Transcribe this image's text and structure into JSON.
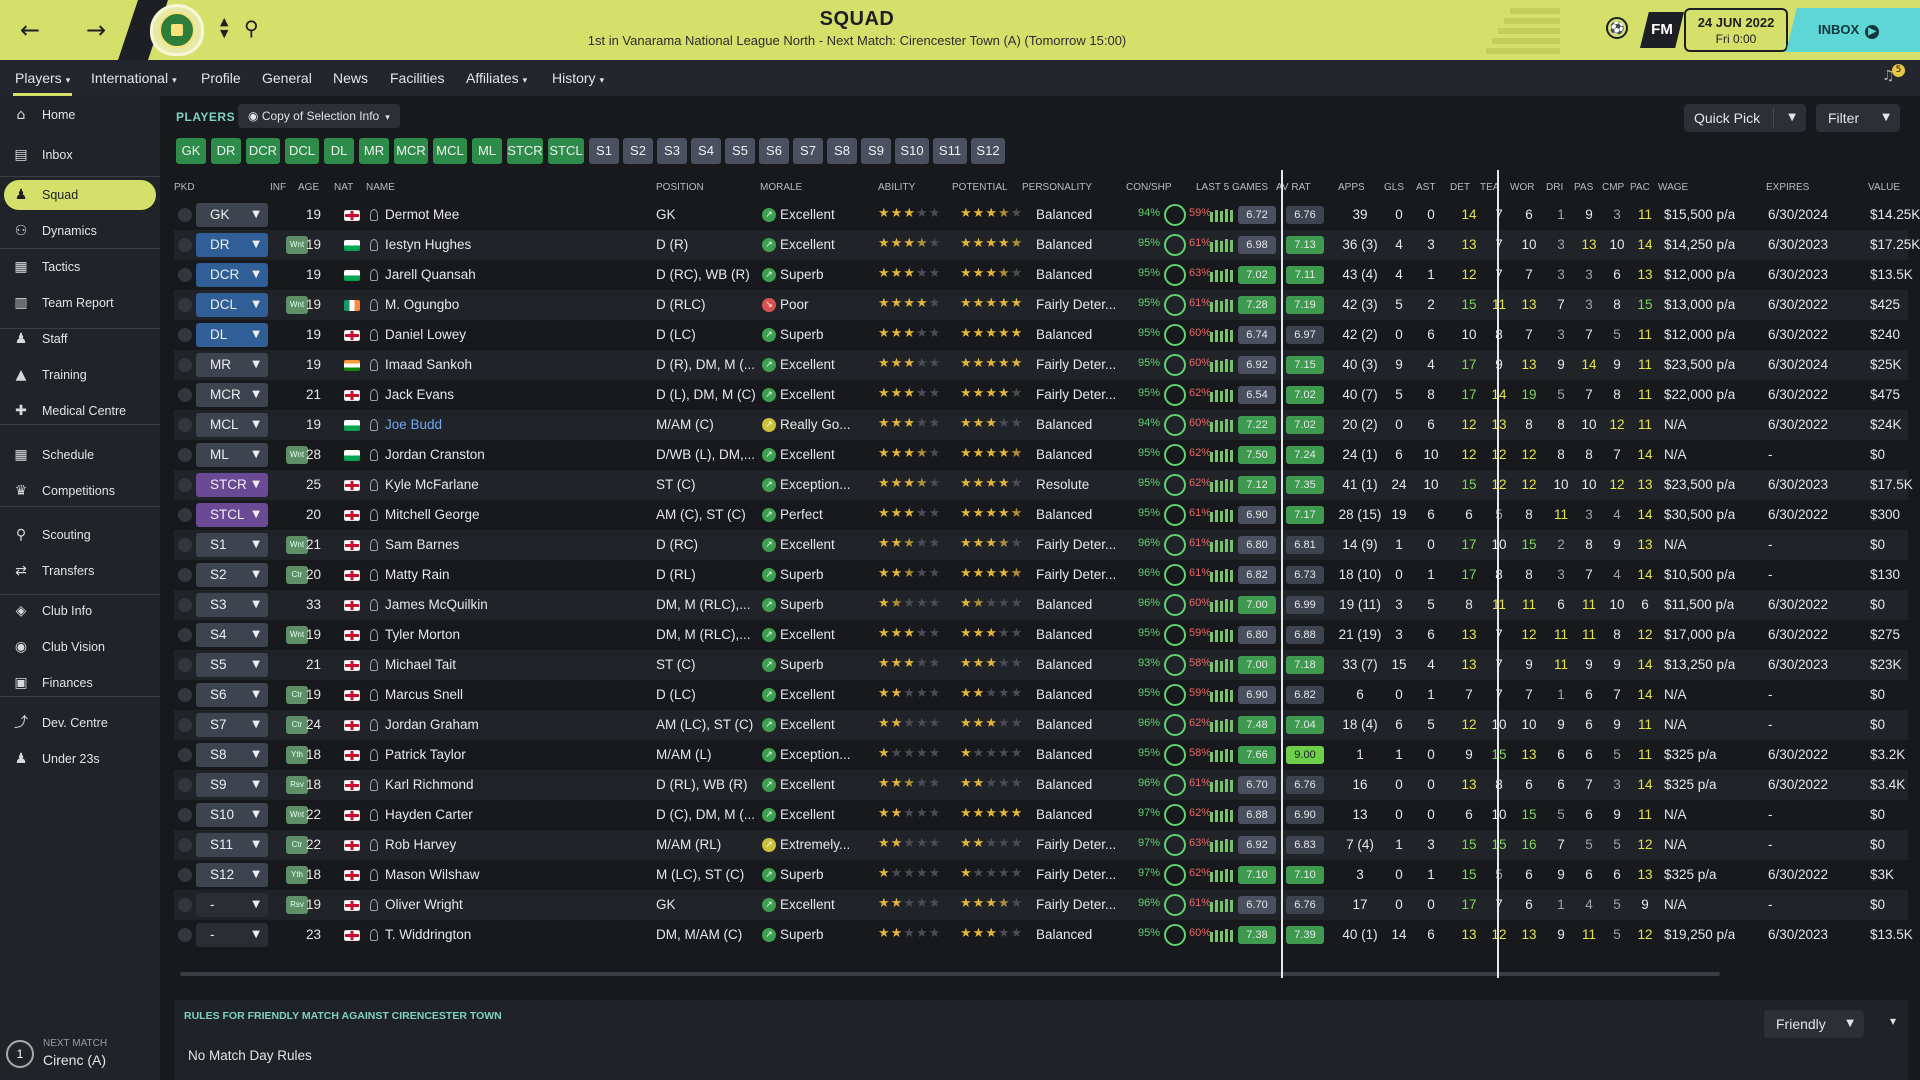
{
  "header": {
    "title": "SQUAD",
    "subtitle": "1st in Vanarama National League North - Next Match: Cirencester Town (A) (Tomorrow 15:00)",
    "back_icon": "←",
    "forward_icon": "→",
    "fm_label": "FM",
    "date": "24 JUN 2022",
    "time": "Fri 0:00",
    "inbox_label": "INBOX",
    "accent": "#d5e06a"
  },
  "subnav": {
    "tabs": [
      "Players",
      "International",
      "Profile",
      "General",
      "News",
      "Facilities",
      "Affiliates",
      "History"
    ],
    "notifications": "5"
  },
  "sidebar": {
    "items": [
      {
        "label": "Home",
        "icon": "home-icon",
        "glyph": "⌂"
      },
      {
        "label": "Inbox",
        "icon": "inbox-icon",
        "glyph": "▤"
      },
      {
        "label": "Squad",
        "icon": "squad-icon",
        "glyph": "♟"
      },
      {
        "label": "Dynamics",
        "icon": "dynamics-icon",
        "glyph": "⚇"
      },
      {
        "label": "Tactics",
        "icon": "tactics-icon",
        "glyph": "▦"
      },
      {
        "label": "Team Report",
        "icon": "report-icon",
        "glyph": "▥"
      },
      {
        "label": "Staff",
        "icon": "staff-icon",
        "glyph": "♟"
      },
      {
        "label": "Training",
        "icon": "training-icon",
        "glyph": "▲"
      },
      {
        "label": "Medical Centre",
        "icon": "medical-icon",
        "glyph": "✚"
      },
      {
        "label": "Schedule",
        "icon": "schedule-icon",
        "glyph": "▦"
      },
      {
        "label": "Competitions",
        "icon": "trophy-icon",
        "glyph": "♛"
      },
      {
        "label": "Scouting",
        "icon": "scouting-icon",
        "glyph": "⚲"
      },
      {
        "label": "Transfers",
        "icon": "transfers-icon",
        "glyph": "⇄"
      },
      {
        "label": "Club Info",
        "icon": "shield-icon",
        "glyph": "◈"
      },
      {
        "label": "Club Vision",
        "icon": "vision-icon",
        "glyph": "◉"
      },
      {
        "label": "Finances",
        "icon": "finances-icon",
        "glyph": "▣"
      },
      {
        "label": "Dev. Centre",
        "icon": "dev-centre-icon",
        "glyph": "⤴"
      },
      {
        "label": "Under 23s",
        "icon": "under23-icon",
        "glyph": "♟"
      }
    ],
    "next_match_label": "NEXT MATCH",
    "next_match_value": "Cirenc (A)",
    "next_match_num": "1"
  },
  "toolbar": {
    "section": "PLAYERS",
    "view": "Copy of Selection Info",
    "quick_pick": "Quick Pick",
    "filter": "Filter"
  },
  "positions": [
    "GK",
    "DR",
    "DCR",
    "DCL",
    "DL",
    "MR",
    "MCR",
    "MCL",
    "ML",
    "STCR",
    "STCL",
    "S1",
    "S2",
    "S3",
    "S4",
    "S5",
    "S6",
    "S7",
    "S8",
    "S9",
    "S10",
    "S11",
    "S12"
  ],
  "columns": [
    "PKD",
    "INF",
    "AGE",
    "NAT",
    "NAME",
    "POSITION",
    "MORALE",
    "ABILITY",
    "POTENTIAL",
    "PERSONALITY",
    "CON/SHP",
    "LAST 5 GAMES",
    "AV RAT",
    "APPS",
    "GLS",
    "AST",
    "DET",
    "TEA",
    "WOR",
    "DRI",
    "PAS",
    "CMP",
    "PAC",
    "WAGE",
    "EXPIRES",
    "VALUE"
  ],
  "players": [
    {
      "pkd": "GK",
      "inf": "",
      "age": "19",
      "nat": "eng",
      "name": "Dermot Mee",
      "pos": "GK",
      "morale": "Excellent",
      "mc": "g",
      "ab": 3,
      "pot": 3.5,
      "pers": "Balanced",
      "con": "94%",
      "shp": "59%",
      "l5": "6.72",
      "av": "6.76",
      "apps": "39",
      "gls": "0",
      "ast": "0",
      "det": "14",
      "tea": "7",
      "wor": "6",
      "dri": "1",
      "pas": "9",
      "cmp": "3",
      "pac": "11",
      "wage": "$15,500 p/a",
      "exp": "6/30/2024",
      "val": "$14.25K"
    },
    {
      "pkd": "DR",
      "inf": "Wnt",
      "age": "19",
      "nat": "wal",
      "name": "Iestyn Hughes",
      "pos": "D (R)",
      "morale": "Excellent",
      "mc": "g",
      "ab": 3.5,
      "pot": 4.5,
      "pers": "Balanced",
      "con": "95%",
      "shp": "61%",
      "l5": "6.98",
      "av": "7.13",
      "apps": "36 (3)",
      "gls": "4",
      "ast": "3",
      "det": "13",
      "tea": "7",
      "wor": "10",
      "dri": "3",
      "pas": "13",
      "cmp": "10",
      "pac": "14",
      "wage": "$14,250 p/a",
      "exp": "6/30/2023",
      "val": "$17.25K"
    },
    {
      "pkd": "DCR",
      "inf": "",
      "age": "19",
      "nat": "wal",
      "name": "Jarell Quansah",
      "pos": "D (RC), WB (R)",
      "morale": "Superb",
      "mc": "g",
      "ab": 3,
      "pot": 3.5,
      "pers": "Balanced",
      "con": "95%",
      "shp": "63%",
      "l5": "7.02",
      "av": "7.11",
      "apps": "43 (4)",
      "gls": "4",
      "ast": "1",
      "det": "12",
      "tea": "7",
      "wor": "7",
      "dri": "3",
      "pas": "3",
      "cmp": "6",
      "pac": "13",
      "wage": "$12,000 p/a",
      "exp": "6/30/2023",
      "val": "$13.5K"
    },
    {
      "pkd": "DCL",
      "inf": "Wnt",
      "age": "19",
      "nat": "irl",
      "name": "M. Ogungbo",
      "pos": "D (RLC)",
      "morale": "Poor",
      "mc": "r",
      "ab": 4,
      "pot": 5,
      "pers": "Fairly Deter...",
      "con": "95%",
      "shp": "61%",
      "l5": "7.28",
      "av": "7.19",
      "apps": "42 (3)",
      "gls": "5",
      "ast": "2",
      "det": "15",
      "tea": "11",
      "wor": "13",
      "dri": "7",
      "pas": "3",
      "cmp": "8",
      "pac": "15",
      "wage": "$13,000 p/a",
      "exp": "6/30/2022",
      "val": "$425"
    },
    {
      "pkd": "DL",
      "inf": "",
      "age": "19",
      "nat": "eng",
      "name": "Daniel Lowey",
      "pos": "D (LC)",
      "morale": "Superb",
      "mc": "g",
      "ab": 3,
      "pot": 5,
      "pers": "Balanced",
      "con": "95%",
      "shp": "60%",
      "l5": "6.74",
      "av": "6.97",
      "apps": "42 (2)",
      "gls": "0",
      "ast": "6",
      "det": "10",
      "tea": "8",
      "wor": "7",
      "dri": "3",
      "pas": "7",
      "cmp": "5",
      "pac": "11",
      "wage": "$12,000 p/a",
      "exp": "6/30/2022",
      "val": "$240"
    },
    {
      "pkd": "MR",
      "inf": "",
      "age": "19",
      "nat": "ind",
      "name": "Imaad Sankoh",
      "pos": "D (R), DM, M (...",
      "morale": "Excellent",
      "mc": "g",
      "ab": 3,
      "pot": 5,
      "pers": "Fairly Deter...",
      "con": "95%",
      "shp": "60%",
      "l5": "6.92",
      "av": "7.15",
      "apps": "40 (3)",
      "gls": "9",
      "ast": "4",
      "det": "17",
      "tea": "9",
      "wor": "13",
      "dri": "9",
      "pas": "14",
      "cmp": "9",
      "pac": "11",
      "wage": "$23,500 p/a",
      "exp": "6/30/2024",
      "val": "$25K"
    },
    {
      "pkd": "MCR",
      "inf": "",
      "age": "21",
      "nat": "eng",
      "name": "Jack Evans",
      "pos": "D (L), DM, M (C)",
      "morale": "Excellent",
      "mc": "g",
      "ab": 3,
      "pot": 4,
      "pers": "Fairly Deter...",
      "con": "95%",
      "shp": "62%",
      "l5": "6.54",
      "av": "7.02",
      "apps": "40 (7)",
      "gls": "5",
      "ast": "8",
      "det": "17",
      "tea": "14",
      "wor": "19",
      "dri": "5",
      "pas": "7",
      "cmp": "8",
      "pac": "11",
      "wage": "$22,000 p/a",
      "exp": "6/30/2022",
      "val": "$475"
    },
    {
      "pkd": "MCL",
      "inf": "",
      "age": "19",
      "nat": "wal",
      "name": "Joe Budd",
      "pos": "M/AM (C)",
      "morale": "Really Go...",
      "mc": "y",
      "ab": 3,
      "pot": 3,
      "pers": "Balanced",
      "con": "94%",
      "shp": "60%",
      "l5": "7.22",
      "av": "7.02",
      "apps": "20 (2)",
      "gls": "0",
      "ast": "6",
      "det": "12",
      "tea": "13",
      "wor": "8",
      "dri": "8",
      "pas": "10",
      "cmp": "12",
      "pac": "11",
      "wage": "N/A",
      "exp": "6/30/2022",
      "val": "$24K",
      "link": true
    },
    {
      "pkd": "ML",
      "inf": "Wnt",
      "age": "28",
      "nat": "wal",
      "name": "Jordan Cranston",
      "pos": "D/WB (L), DM,...",
      "morale": "Excellent",
      "mc": "g",
      "ab": 3.5,
      "pot": 4.5,
      "pers": "Balanced",
      "con": "95%",
      "shp": "62%",
      "l5": "7.50",
      "av": "7.24",
      "apps": "24 (1)",
      "gls": "6",
      "ast": "10",
      "det": "12",
      "tea": "12",
      "wor": "12",
      "dri": "8",
      "pas": "8",
      "cmp": "7",
      "pac": "14",
      "wage": "N/A",
      "exp": "-",
      "val": "$0"
    },
    {
      "pkd": "STCR",
      "inf": "",
      "age": "25",
      "nat": "eng",
      "name": "Kyle McFarlane",
      "pos": "ST (C)",
      "morale": "Exception...",
      "mc": "g",
      "ab": 3.5,
      "pot": 4,
      "pers": "Resolute",
      "con": "95%",
      "shp": "62%",
      "l5": "7.12",
      "av": "7.35",
      "apps": "41 (1)",
      "gls": "24",
      "ast": "10",
      "det": "15",
      "tea": "12",
      "wor": "12",
      "dri": "10",
      "pas": "10",
      "cmp": "12",
      "pac": "13",
      "wage": "$23,500 p/a",
      "exp": "6/30/2023",
      "val": "$17.5K"
    },
    {
      "pkd": "STCL",
      "inf": "",
      "age": "20",
      "nat": "eng",
      "name": "Mitchell George",
      "pos": "AM (C), ST (C)",
      "morale": "Perfect",
      "mc": "g",
      "ab": 3,
      "pot": 4.5,
      "pers": "Balanced",
      "con": "95%",
      "shp": "61%",
      "l5": "6.90",
      "av": "7.17",
      "apps": "28 (15)",
      "gls": "19",
      "ast": "6",
      "det": "6",
      "tea": "5",
      "wor": "8",
      "dri": "11",
      "pas": "3",
      "cmp": "4",
      "pac": "14",
      "wage": "$30,500 p/a",
      "exp": "6/30/2022",
      "val": "$300"
    },
    {
      "pkd": "S1",
      "inf": "Wnt",
      "age": "21",
      "nat": "eng",
      "name": "Sam Barnes",
      "pos": "D (RC)",
      "morale": "Excellent",
      "mc": "g",
      "ab": 2.5,
      "pot": 3.5,
      "pers": "Fairly Deter...",
      "con": "96%",
      "shp": "61%",
      "l5": "6.80",
      "av": "6.81",
      "apps": "14 (9)",
      "gls": "1",
      "ast": "0",
      "det": "17",
      "tea": "10",
      "wor": "15",
      "dri": "2",
      "pas": "8",
      "cmp": "9",
      "pac": "13",
      "wage": "N/A",
      "exp": "-",
      "val": "$0"
    },
    {
      "pkd": "S2",
      "inf": "Ctr",
      "age": "20",
      "nat": "eng",
      "name": "Matty Rain",
      "pos": "D (RL)",
      "morale": "Superb",
      "mc": "g",
      "ab": 2.5,
      "pot": 4.5,
      "pers": "Fairly Deter...",
      "con": "96%",
      "shp": "61%",
      "l5": "6.82",
      "av": "6.73",
      "apps": "18 (10)",
      "gls": "0",
      "ast": "1",
      "det": "17",
      "tea": "8",
      "wor": "8",
      "dri": "3",
      "pas": "7",
      "cmp": "4",
      "pac": "14",
      "wage": "$10,500 p/a",
      "exp": "-",
      "val": "$130"
    },
    {
      "pkd": "S3",
      "inf": "",
      "age": "33",
      "nat": "eng",
      "name": "James McQuilkin",
      "pos": "DM, M (RLC),...",
      "morale": "Superb",
      "mc": "g",
      "ab": 1.5,
      "pot": 1.5,
      "pers": "Balanced",
      "con": "96%",
      "shp": "60%",
      "l5": "7.00",
      "av": "6.99",
      "apps": "19 (11)",
      "gls": "3",
      "ast": "5",
      "det": "8",
      "tea": "11",
      "wor": "11",
      "dri": "6",
      "pas": "11",
      "cmp": "10",
      "pac": "6",
      "wage": "$11,500 p/a",
      "exp": "6/30/2022",
      "val": "$0"
    },
    {
      "pkd": "S4",
      "inf": "Wnt",
      "age": "19",
      "nat": "eng",
      "name": "Tyler Morton",
      "pos": "DM, M (RLC),...",
      "morale": "Excellent",
      "mc": "g",
      "ab": 3,
      "pot": 3,
      "pers": "Balanced",
      "con": "95%",
      "shp": "59%",
      "l5": "6.80",
      "av": "6.88",
      "apps": "21 (19)",
      "gls": "3",
      "ast": "6",
      "det": "13",
      "tea": "7",
      "wor": "12",
      "dri": "11",
      "pas": "11",
      "cmp": "8",
      "pac": "12",
      "wage": "$17,000 p/a",
      "exp": "6/30/2022",
      "val": "$275"
    },
    {
      "pkd": "S5",
      "inf": "",
      "age": "21",
      "nat": "eng",
      "name": "Michael Tait",
      "pos": "ST (C)",
      "morale": "Superb",
      "mc": "g",
      "ab": 3,
      "pot": 3,
      "pers": "Balanced",
      "con": "93%",
      "shp": "58%",
      "l5": "7.00",
      "av": "7.18",
      "apps": "33 (7)",
      "gls": "15",
      "ast": "4",
      "det": "13",
      "tea": "7",
      "wor": "9",
      "dri": "11",
      "pas": "9",
      "cmp": "9",
      "pac": "14",
      "wage": "$13,250 p/a",
      "exp": "6/30/2023",
      "val": "$23K"
    },
    {
      "pkd": "S6",
      "inf": "Ctr",
      "age": "19",
      "nat": "eng",
      "name": "Marcus Snell",
      "pos": "D (LC)",
      "morale": "Excellent",
      "mc": "g",
      "ab": 2,
      "pot": 2,
      "pers": "Balanced",
      "con": "95%",
      "shp": "59%",
      "l5": "6.90",
      "av": "6.82",
      "apps": "6",
      "gls": "0",
      "ast": "1",
      "det": "7",
      "tea": "7",
      "wor": "7",
      "dri": "1",
      "pas": "6",
      "cmp": "7",
      "pac": "14",
      "wage": "N/A",
      "exp": "-",
      "val": "$0"
    },
    {
      "pkd": "S7",
      "inf": "Ctr",
      "age": "24",
      "nat": "eng",
      "name": "Jordan Graham",
      "pos": "AM (LC), ST (C)",
      "morale": "Excellent",
      "mc": "g",
      "ab": 2,
      "pot": 3,
      "pers": "Balanced",
      "con": "96%",
      "shp": "62%",
      "l5": "7.48",
      "av": "7.04",
      "apps": "18 (4)",
      "gls": "6",
      "ast": "5",
      "det": "12",
      "tea": "10",
      "wor": "10",
      "dri": "9",
      "pas": "6",
      "cmp": "9",
      "pac": "11",
      "wage": "N/A",
      "exp": "-",
      "val": "$0"
    },
    {
      "pkd": "S8",
      "inf": "Yth",
      "age": "18",
      "nat": "eng",
      "name": "Patrick Taylor",
      "pos": "M/AM (L)",
      "morale": "Exception...",
      "mc": "g",
      "ab": 1,
      "pot": 1,
      "pers": "Balanced",
      "con": "95%",
      "shp": "58%",
      "l5": "7.66",
      "av": "9.00",
      "apps": "1",
      "gls": "1",
      "ast": "0",
      "det": "9",
      "tea": "15",
      "wor": "13",
      "dri": "6",
      "pas": "6",
      "cmp": "5",
      "pac": "11",
      "wage": "$325 p/a",
      "exp": "6/30/2022",
      "val": "$3.2K"
    },
    {
      "pkd": "S9",
      "inf": "Rsv",
      "age": "18",
      "nat": "eng",
      "name": "Karl Richmond",
      "pos": "D (RL), WB (R)",
      "morale": "Excellent",
      "mc": "g",
      "ab": 2.5,
      "pot": 2,
      "pers": "Balanced",
      "con": "96%",
      "shp": "61%",
      "l5": "6.70",
      "av": "6.76",
      "apps": "16",
      "gls": "0",
      "ast": "0",
      "det": "13",
      "tea": "8",
      "wor": "6",
      "dri": "6",
      "pas": "7",
      "cmp": "3",
      "pac": "14",
      "wage": "$325 p/a",
      "exp": "6/30/2022",
      "val": "$3.4K"
    },
    {
      "pkd": "S10",
      "inf": "Wnt",
      "age": "22",
      "nat": "eng",
      "name": "Hayden Carter",
      "pos": "D (C), DM, M (...",
      "morale": "Excellent",
      "mc": "g",
      "ab": 2,
      "pot": 5,
      "pers": "Balanced",
      "con": "97%",
      "shp": "62%",
      "l5": "6.88",
      "av": "6.90",
      "apps": "13",
      "gls": "0",
      "ast": "0",
      "det": "6",
      "tea": "10",
      "wor": "15",
      "dri": "5",
      "pas": "6",
      "cmp": "9",
      "pac": "11",
      "wage": "N/A",
      "exp": "-",
      "val": "$0"
    },
    {
      "pkd": "S11",
      "inf": "Ctr",
      "age": "22",
      "nat": "eng",
      "name": "Rob Harvey",
      "pos": "M/AM (RL)",
      "morale": "Extremely...",
      "mc": "y",
      "ab": 2,
      "pot": 2,
      "pers": "Fairly Deter...",
      "con": "97%",
      "shp": "63%",
      "l5": "6.92",
      "av": "6.83",
      "apps": "7 (4)",
      "gls": "1",
      "ast": "3",
      "det": "15",
      "tea": "15",
      "wor": "16",
      "dri": "7",
      "pas": "5",
      "cmp": "5",
      "pac": "12",
      "wage": "N/A",
      "exp": "-",
      "val": "$0"
    },
    {
      "pkd": "S12",
      "inf": "Yth",
      "age": "18",
      "nat": "eng",
      "name": "Mason Wilshaw",
      "pos": "M (LC), ST (C)",
      "morale": "Superb",
      "mc": "g",
      "ab": 1,
      "pot": 1,
      "pers": "Fairly Deter...",
      "con": "97%",
      "shp": "62%",
      "l5": "7.10",
      "av": "7.10",
      "apps": "3",
      "gls": "0",
      "ast": "1",
      "det": "15",
      "tea": "5",
      "wor": "6",
      "dri": "9",
      "pas": "6",
      "cmp": "6",
      "pac": "13",
      "wage": "$325 p/a",
      "exp": "6/30/2022",
      "val": "$3K"
    },
    {
      "pkd": "-",
      "inf": "Rsv",
      "age": "19",
      "nat": "eng",
      "name": "Oliver Wright",
      "pos": "GK",
      "morale": "Excellent",
      "mc": "g",
      "ab": 2,
      "pot": 3.5,
      "pers": "Fairly Deter...",
      "con": "96%",
      "shp": "61%",
      "l5": "6.70",
      "av": "6.76",
      "apps": "17",
      "gls": "0",
      "ast": "0",
      "det": "17",
      "tea": "7",
      "wor": "6",
      "dri": "1",
      "pas": "4",
      "cmp": "5",
      "pac": "9",
      "wage": "N/A",
      "exp": "-",
      "val": "$0"
    },
    {
      "pkd": "-",
      "inf": "",
      "age": "23",
      "nat": "eng",
      "name": "T. Widdrington",
      "pos": "DM, M/AM (C)",
      "morale": "Superb",
      "mc": "g",
      "ab": 2,
      "pot": 3,
      "pers": "Balanced",
      "con": "95%",
      "shp": "60%",
      "l5": "7.38",
      "av": "7.39",
      "apps": "40 (1)",
      "gls": "14",
      "ast": "6",
      "det": "13",
      "tea": "12",
      "wor": "13",
      "dri": "9",
      "pas": "11",
      "cmp": "5",
      "pac": "12",
      "wage": "$19,250 p/a",
      "exp": "6/30/2023",
      "val": "$13.5K"
    }
  ],
  "rules": {
    "title": "RULES FOR FRIENDLY MATCH AGAINST CIRENCESTER TOWN",
    "body": "No Match Day Rules",
    "select": "Friendly"
  }
}
